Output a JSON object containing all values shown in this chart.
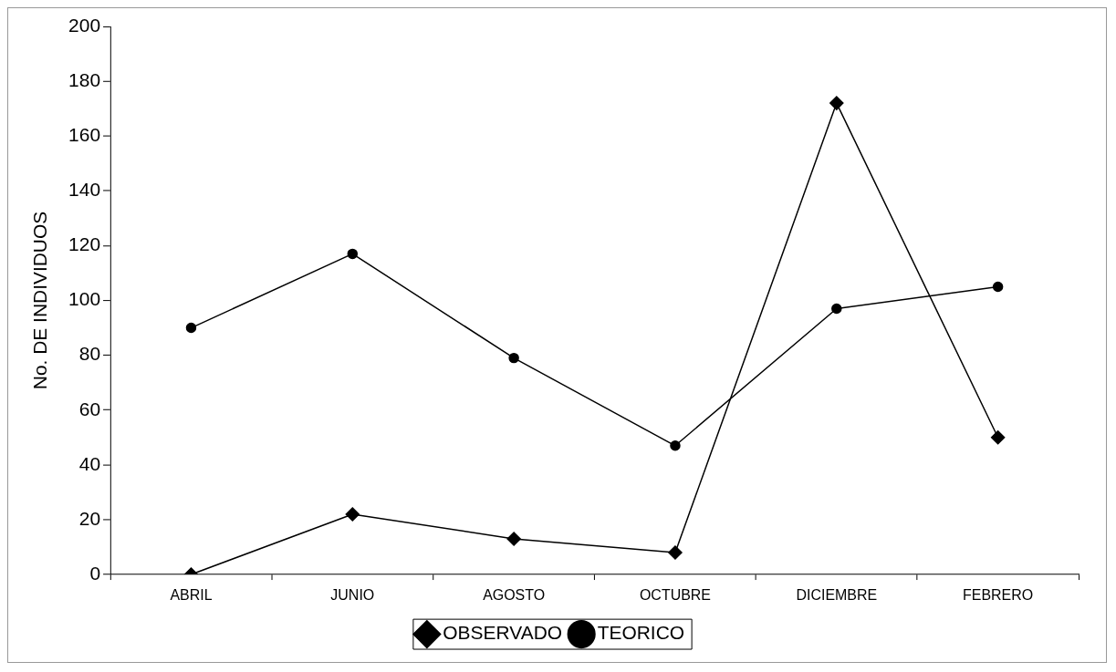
{
  "chart_data": {
    "type": "line",
    "ylabel": "No. DE INDIVIDUOS",
    "categories": [
      "ABRIL",
      "JUNIO",
      "AGOSTO",
      "OCTUBRE",
      "DICIEMBRE",
      "FEBRERO"
    ],
    "series": [
      {
        "name": "OBSERVADO",
        "color": "#000000",
        "marker": "diamond",
        "values": [
          0,
          22,
          13,
          8,
          172,
          50
        ]
      },
      {
        "name": "TEORICO",
        "color": "#000000",
        "marker": "circle",
        "values": [
          90,
          117,
          79,
          47,
          97,
          105
        ]
      }
    ],
    "ylim": [
      0,
      200
    ],
    "yticks": [
      0,
      20,
      40,
      60,
      80,
      100,
      120,
      140,
      160,
      180,
      200
    ],
    "grid": false,
    "legend": "bottom",
    "line_style": "solid"
  }
}
